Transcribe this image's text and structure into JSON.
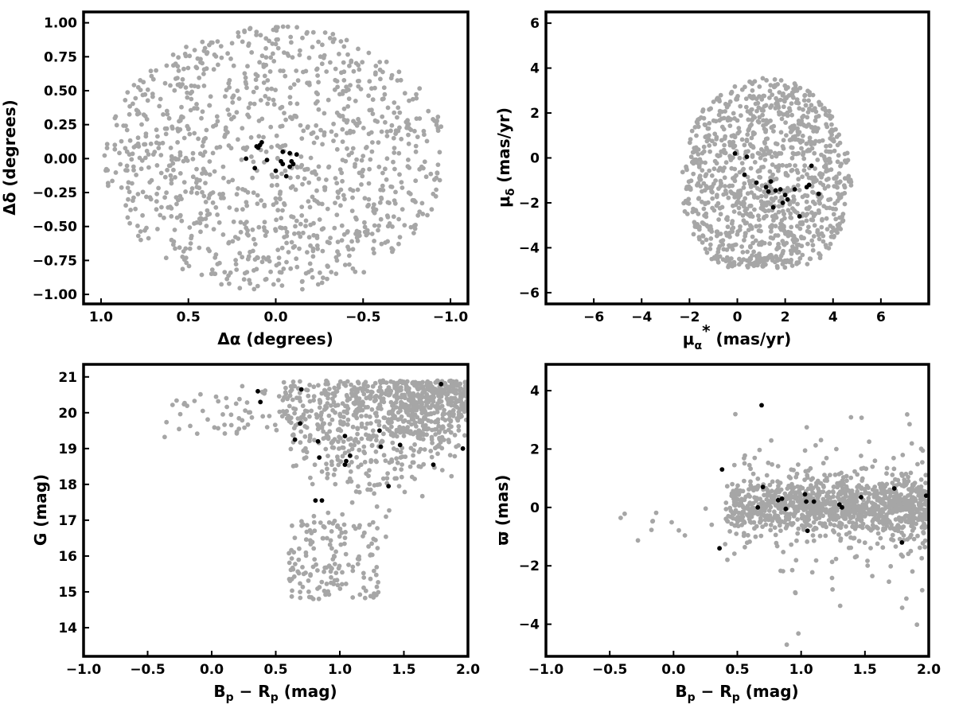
{
  "colors": {
    "field": "#a6a6a6",
    "members": "#000000",
    "axes": "#000000"
  },
  "chart_data": [
    {
      "type": "scatter",
      "id": "sky",
      "xlim": [
        1.1,
        -1.1
      ],
      "ylim": [
        -1.07,
        1.08
      ],
      "xticks": [
        1.0,
        0.5,
        0.0,
        -0.5,
        -1.0
      ],
      "xticklabels": [
        "1.0",
        "0.5",
        "0.0",
        "−0.5",
        "−1.0"
      ],
      "yticks": [
        -1.0,
        -0.75,
        -0.5,
        -0.25,
        0.0,
        0.25,
        0.5,
        0.75,
        1.0
      ],
      "yticklabels": [
        "−1.00",
        "−0.75",
        "−0.50",
        "−0.25",
        "0.00",
        "0.25",
        "0.50",
        "0.75",
        "1.00"
      ],
      "xlabel": "Δα (degrees)",
      "ylabel": "Δδ (degrees)",
      "field": {
        "count": 1100,
        "shape": "disk",
        "center": [
          0,
          0
        ],
        "radius": 0.98
      },
      "members": {
        "x": [
          0.08,
          0.11,
          0.09,
          0.05,
          -0.04,
          -0.08,
          -0.09,
          -0.1,
          -0.08,
          -0.03,
          -0.04,
          -0.06,
          0.1,
          0.17,
          0.0,
          -0.12,
          0.12
        ],
        "y": [
          0.12,
          0.09,
          0.1,
          -0.01,
          0.05,
          0.04,
          -0.02,
          -0.04,
          -0.06,
          -0.02,
          -0.04,
          -0.13,
          0.08,
          0.0,
          -0.09,
          0.03,
          -0.07
        ]
      }
    },
    {
      "type": "scatter",
      "id": "proper-motion",
      "xlim": [
        -8,
        8
      ],
      "ylim": [
        -6.5,
        6.5
      ],
      "xticks": [
        -6,
        -4,
        -2,
        0,
        2,
        4,
        6
      ],
      "xticklabels": [
        "−6",
        "−4",
        "−2",
        "0",
        "2",
        "4",
        "6"
      ],
      "yticks": [
        -6,
        -4,
        -2,
        0,
        2,
        4,
        6
      ],
      "yticklabels": [
        "−6",
        "−4",
        "−2",
        "0",
        "2",
        "4",
        "6"
      ],
      "xlabel": "μα* (mas/yr)",
      "ylabel": "μδ (mas/yr)",
      "field": {
        "count": 1100,
        "shape": "ellipse",
        "center": [
          1.2,
          -1.0
        ],
        "radius": [
          3.6,
          4.6
        ]
      },
      "members": {
        "x": [
          -0.1,
          0.4,
          0.3,
          0.8,
          1.2,
          1.4,
          1.6,
          1.3,
          1.8,
          2.0,
          2.1,
          2.4,
          2.9,
          3.0,
          3.1,
          3.4,
          1.5,
          1.9,
          2.6
        ],
        "y": [
          0.2,
          0.05,
          -0.75,
          -1.1,
          -1.3,
          -1.05,
          -1.45,
          -1.5,
          -1.4,
          -1.65,
          -1.85,
          -1.4,
          -1.3,
          -1.2,
          -0.35,
          -1.6,
          -2.2,
          -2.0,
          -2.6
        ]
      }
    },
    {
      "type": "scatter",
      "id": "cmd-g",
      "xlim": [
        -1.0,
        2.0
      ],
      "ylim": [
        13.2,
        21.35
      ],
      "xticks": [
        -1.0,
        -0.5,
        0.0,
        0.5,
        1.0,
        1.5,
        2.0
      ],
      "xticklabels": [
        "−1.0",
        "−0.5",
        "0.0",
        "0.5",
        "1.0",
        "1.5",
        "2.0"
      ],
      "yticks": [
        14,
        15,
        16,
        17,
        18,
        19,
        20,
        21
      ],
      "yticklabels": [
        "14",
        "15",
        "16",
        "17",
        "18",
        "19",
        "20",
        "21"
      ],
      "xlabel": "Bp − Rp (mag)",
      "ylabel": "G (mag)",
      "field": {
        "count": 1100,
        "shape": "cmd"
      },
      "members": {
        "x": [
          0.36,
          0.38,
          0.7,
          0.69,
          0.65,
          0.83,
          0.84,
          0.81,
          0.86,
          1.04,
          1.08,
          1.05,
          1.04,
          1.31,
          1.32,
          1.38,
          1.47,
          1.73,
          1.79,
          1.96
        ],
        "y": [
          20.6,
          20.3,
          20.65,
          19.7,
          19.25,
          19.2,
          18.75,
          17.55,
          17.55,
          19.35,
          18.8,
          18.65,
          18.55,
          19.5,
          19.05,
          17.95,
          19.1,
          18.55,
          20.8,
          19.0
        ]
      }
    },
    {
      "type": "scatter",
      "id": "cmd-parallax",
      "xlim": [
        -1.0,
        2.0
      ],
      "ylim": [
        -5.1,
        4.9
      ],
      "xticks": [
        -1.0,
        -0.5,
        0.0,
        0.5,
        1.0,
        1.5,
        2.0
      ],
      "xticklabels": [
        "−1.0",
        "−0.5",
        "0.0",
        "0.5",
        "1.0",
        "1.5",
        "2.0"
      ],
      "yticks": [
        -4,
        -2,
        0,
        2,
        4
      ],
      "yticklabels": [
        "−4",
        "−2",
        "0",
        "2",
        "4"
      ],
      "xlabel": "Bp − Rp (mag)",
      "ylabel": "ϖ (mas)",
      "field": {
        "count": 1200,
        "shape": "band"
      },
      "members": {
        "x": [
          0.38,
          0.36,
          0.66,
          0.7,
          0.82,
          0.85,
          0.88,
          1.03,
          1.04,
          1.05,
          1.1,
          1.3,
          1.32,
          1.47,
          1.73,
          1.79,
          1.98,
          0.69
        ],
        "y": [
          1.3,
          -1.4,
          0.0,
          0.7,
          0.25,
          0.3,
          -0.05,
          0.45,
          0.2,
          -0.8,
          0.2,
          0.1,
          0.0,
          0.35,
          0.65,
          -1.2,
          0.4,
          3.5
        ]
      }
    }
  ]
}
